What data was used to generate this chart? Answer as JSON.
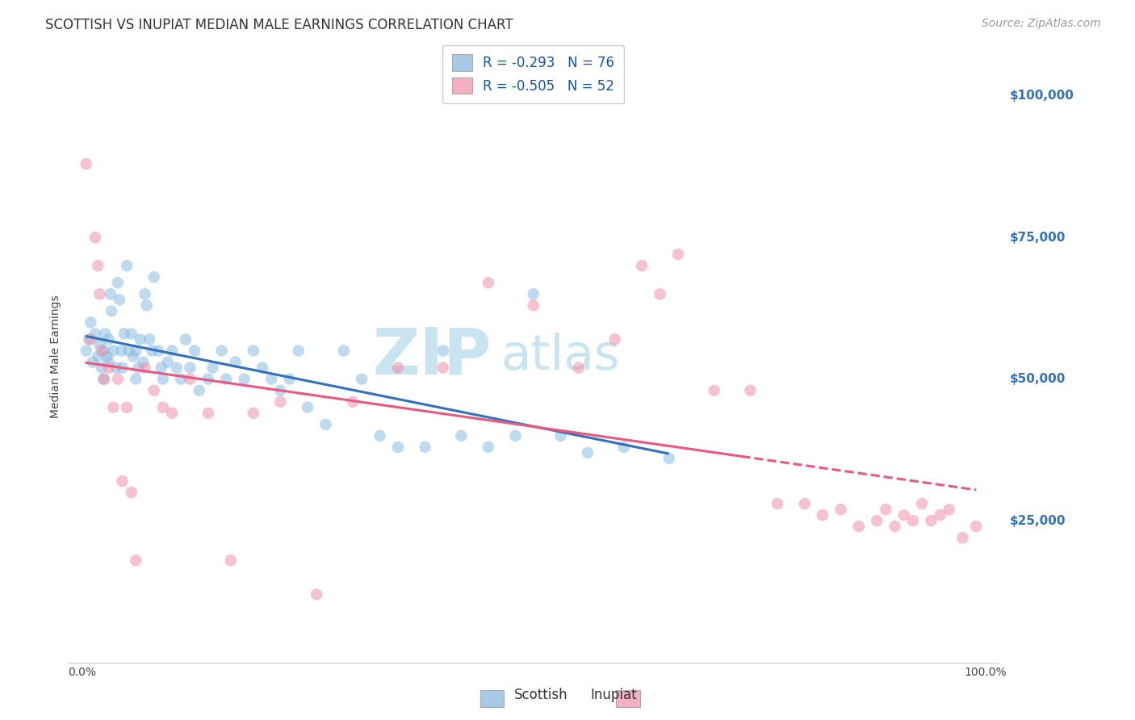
{
  "title": "SCOTTISH VS INUPIAT MEDIAN MALE EARNINGS CORRELATION CHART",
  "source": "Source: ZipAtlas.com",
  "ylabel": "Median Male Earnings",
  "ytick_labels": [
    "$25,000",
    "$50,000",
    "$75,000",
    "$100,000"
  ],
  "ytick_values": [
    25000,
    50000,
    75000,
    100000
  ],
  "ymin": 0,
  "ymax": 108000,
  "xmin": -0.015,
  "xmax": 1.015,
  "legend_label1": "R = -0.293   N = 76",
  "legend_label2": "R = -0.505   N = 52",
  "legend_color1": "#a8c8e8",
  "legend_color2": "#f4b0c0",
  "scatter_color1": "#88bce0",
  "scatter_color2": "#f090a8",
  "line_color1": "#3370bb",
  "line_color2": "#e85880",
  "watermark_zip": "ZIP",
  "watermark_atlas": "atlas",
  "watermark_color": "#c8e4f0",
  "background_color": "#ffffff",
  "grid_color": "#cccccc",
  "scottish_x": [
    0.005,
    0.008,
    0.01,
    0.012,
    0.015,
    0.018,
    0.02,
    0.022,
    0.024,
    0.025,
    0.026,
    0.028,
    0.03,
    0.03,
    0.032,
    0.033,
    0.035,
    0.038,
    0.04,
    0.042,
    0.044,
    0.045,
    0.047,
    0.05,
    0.052,
    0.055,
    0.057,
    0.06,
    0.06,
    0.063,
    0.065,
    0.068,
    0.07,
    0.072,
    0.075,
    0.078,
    0.08,
    0.085,
    0.088,
    0.09,
    0.095,
    0.1,
    0.105,
    0.11,
    0.115,
    0.12,
    0.125,
    0.13,
    0.14,
    0.145,
    0.155,
    0.16,
    0.17,
    0.18,
    0.19,
    0.2,
    0.21,
    0.22,
    0.23,
    0.24,
    0.25,
    0.27,
    0.29,
    0.31,
    0.33,
    0.35,
    0.38,
    0.4,
    0.42,
    0.45,
    0.48,
    0.5,
    0.53,
    0.56,
    0.6,
    0.65
  ],
  "scottish_y": [
    55000,
    57000,
    60000,
    53000,
    58000,
    54000,
    56000,
    52000,
    50000,
    55000,
    58000,
    54000,
    57000,
    53000,
    65000,
    62000,
    55000,
    52000,
    67000,
    64000,
    55000,
    52000,
    58000,
    70000,
    55000,
    58000,
    54000,
    50000,
    55000,
    52000,
    57000,
    53000,
    65000,
    63000,
    57000,
    55000,
    68000,
    55000,
    52000,
    50000,
    53000,
    55000,
    52000,
    50000,
    57000,
    52000,
    55000,
    48000,
    50000,
    52000,
    55000,
    50000,
    53000,
    50000,
    55000,
    52000,
    50000,
    48000,
    50000,
    55000,
    45000,
    42000,
    55000,
    50000,
    40000,
    38000,
    38000,
    55000,
    40000,
    38000,
    40000,
    65000,
    40000,
    37000,
    38000,
    36000
  ],
  "inupiat_x": [
    0.005,
    0.01,
    0.015,
    0.018,
    0.02,
    0.022,
    0.025,
    0.03,
    0.035,
    0.04,
    0.045,
    0.05,
    0.055,
    0.06,
    0.07,
    0.08,
    0.09,
    0.1,
    0.12,
    0.14,
    0.165,
    0.19,
    0.22,
    0.26,
    0.3,
    0.35,
    0.4,
    0.45,
    0.5,
    0.55,
    0.59,
    0.62,
    0.64,
    0.66,
    0.7,
    0.74,
    0.77,
    0.8,
    0.82,
    0.84,
    0.86,
    0.88,
    0.89,
    0.9,
    0.91,
    0.92,
    0.93,
    0.94,
    0.95,
    0.96,
    0.975,
    0.99
  ],
  "inupiat_y": [
    88000,
    57000,
    75000,
    70000,
    65000,
    55000,
    50000,
    52000,
    45000,
    50000,
    32000,
    45000,
    30000,
    18000,
    52000,
    48000,
    45000,
    44000,
    50000,
    44000,
    18000,
    44000,
    46000,
    12000,
    46000,
    52000,
    52000,
    67000,
    63000,
    52000,
    57000,
    70000,
    65000,
    72000,
    48000,
    48000,
    28000,
    28000,
    26000,
    27000,
    24000,
    25000,
    27000,
    24000,
    26000,
    25000,
    28000,
    25000,
    26000,
    27000,
    22000,
    24000
  ],
  "title_fontsize": 12,
  "axis_label_fontsize": 10,
  "tick_fontsize": 10,
  "legend_fontsize": 12,
  "source_fontsize": 10,
  "marker_size": 110,
  "marker_alpha": 0.55,
  "line_width": 2.2,
  "blue_line_solid_end": 0.64,
  "pink_line_solid_end": 0.73
}
